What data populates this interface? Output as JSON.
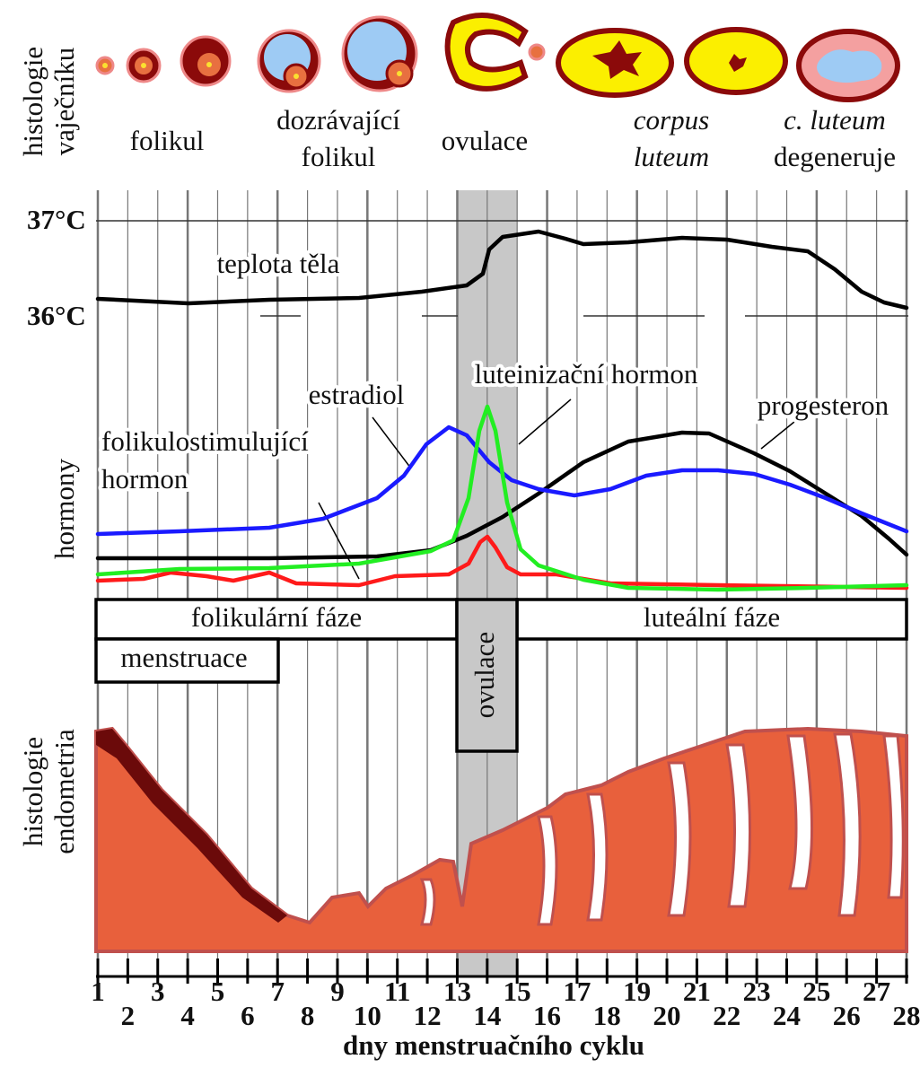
{
  "ovary_histology": {
    "label": [
      "histologie",
      "vaječníku"
    ],
    "stages": [
      [
        "folikul"
      ],
      [
        "dozrávající",
        "folikul"
      ],
      [
        "ovulace"
      ],
      [
        "corpus",
        "luteum"
      ],
      [
        "c. luteum",
        "degeneruje"
      ]
    ]
  },
  "temperature": {
    "label": "teplota těla",
    "ticks": [
      "37°C",
      "36°C"
    ]
  },
  "hormones": {
    "label": "hormony",
    "curves": {
      "fsh": [
        "folikulostimulující",
        "hormon"
      ],
      "estradiol": "estradiol",
      "lh": "luteinizační hormon",
      "progesterone": "progesteron"
    }
  },
  "phases": {
    "follicular": "folikulární fáze",
    "menstruation": "menstruace",
    "ovulation": "ovulace",
    "luteal": "luteální fáze"
  },
  "endometrium": {
    "label": [
      "histologie",
      "endometria"
    ]
  },
  "x_axis": {
    "days": [
      "1",
      "2",
      "3",
      "4",
      "5",
      "6",
      "7",
      "8",
      "9",
      "10",
      "11",
      "12",
      "13",
      "14",
      "15",
      "16",
      "17",
      "18",
      "19",
      "20",
      "21",
      "22",
      "23",
      "24",
      "25",
      "26",
      "27",
      "28"
    ],
    "label": "dny menstruačního cyklu"
  }
}
